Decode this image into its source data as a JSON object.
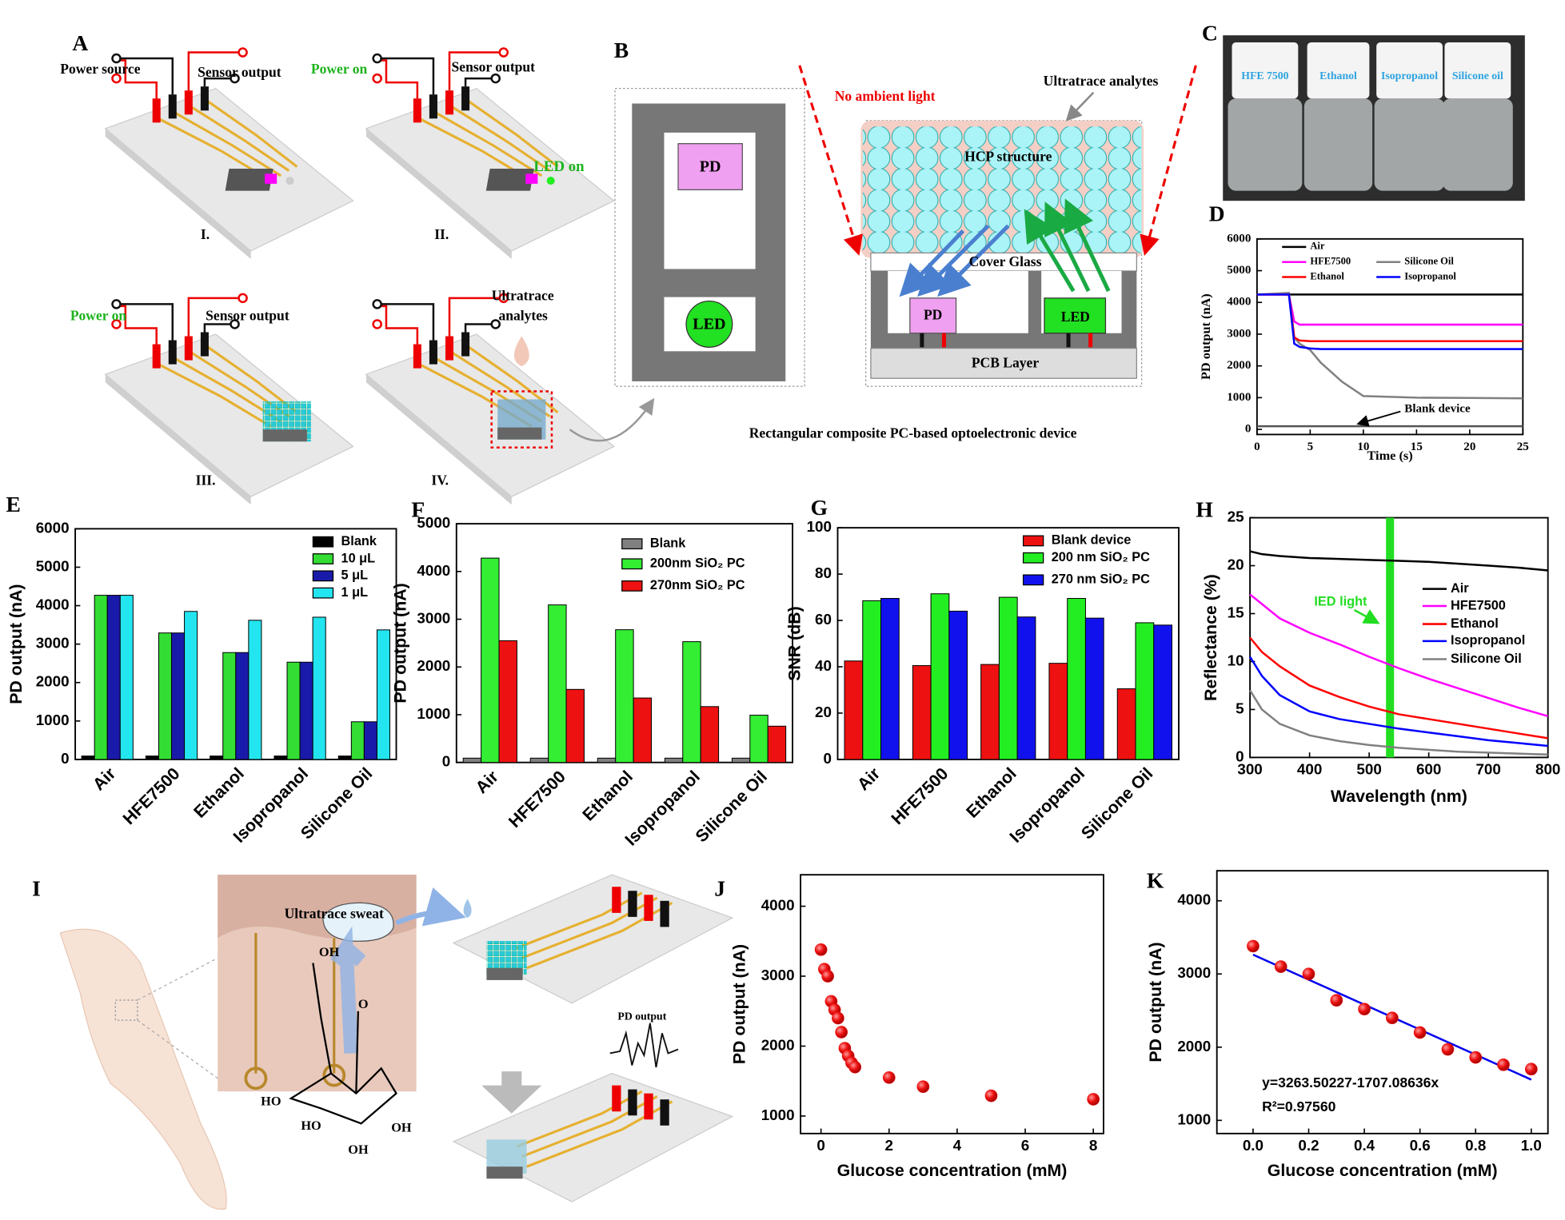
{
  "diagrams": {
    "A": {
      "letter": "A",
      "labels": [
        "Power source",
        "Sensor output",
        "I.",
        "Power on",
        "Sensor output",
        "LED on",
        "II.",
        "Power on",
        "Sensor output",
        "III.",
        "Ultratrace",
        "analytes",
        "IV."
      ]
    },
    "B": {
      "letter": "B",
      "labels": [
        "PD",
        "LED",
        "No ambient light",
        "Ultratrace analytes",
        "HCP structure",
        "Cover Glass",
        "PD",
        "LED",
        "PCB Layer",
        "Rectangular composite PC-based optoelectronic device"
      ]
    },
    "C": {
      "letter": "C",
      "labels": [
        "HFE 7500",
        "Ethanol",
        "Isopropanol",
        "Silicone oil"
      ]
    },
    "I": {
      "letter": "I",
      "labels": [
        "Ultratrace sweat",
        "PD output",
        "OH",
        "O",
        "HO",
        "HO",
        "OH",
        "OH"
      ]
    }
  },
  "chart_data": [
    {
      "panel": "D",
      "type": "line",
      "xlabel": "Time (s)",
      "ylabel": "PD output (nA)",
      "x": [
        0,
        3,
        3.5,
        4,
        5,
        6,
        8,
        10,
        15,
        20,
        25
      ],
      "xlim": [
        0,
        25
      ],
      "xticks": [
        0,
        5,
        10,
        15,
        20,
        25
      ],
      "ylim": [
        -160,
        6000
      ],
      "yticks": [
        0,
        1000,
        2000,
        3000,
        4000,
        5000,
        6000
      ],
      "series": [
        {
          "name": "Air",
          "color": "#000000",
          "values": [
            4250,
            4250,
            4250,
            4250,
            4250,
            4250,
            4250,
            4250,
            4250,
            4250,
            4250
          ]
        },
        {
          "name": "HFE7500",
          "color": "#ff00ff",
          "values": [
            4250,
            4250,
            3400,
            3300,
            3300,
            3300,
            3300,
            3300,
            3300,
            3300,
            3300
          ]
        },
        {
          "name": "Silicone Oil",
          "color": "#808080",
          "values": [
            4250,
            4300,
            2900,
            2700,
            2500,
            2100,
            1500,
            1050,
            1000,
            990,
            980
          ]
        },
        {
          "name": "Ethanol",
          "color": "#ff0000",
          "values": [
            4250,
            4250,
            2900,
            2800,
            2780,
            2780,
            2780,
            2780,
            2780,
            2780,
            2780
          ]
        },
        {
          "name": "Isopropanol",
          "color": "#0000ff",
          "values": [
            4250,
            4250,
            2700,
            2600,
            2550,
            2530,
            2530,
            2530,
            2530,
            2530,
            2530
          ]
        },
        {
          "name": "Blank device",
          "color": "#555555",
          "values": [
            100,
            100,
            100,
            100,
            100,
            100,
            100,
            100,
            100,
            100,
            100
          ]
        }
      ]
    },
    {
      "panel": "E",
      "type": "bar",
      "ylabel": "PD output (nA)",
      "categories": [
        "Air",
        "HFE7500",
        "Ethanol",
        "Isopropanol",
        "Silicone Oil"
      ],
      "ylim": [
        0,
        6000
      ],
      "yticks": [
        0,
        1000,
        2000,
        3000,
        4000,
        5000,
        6000
      ],
      "series": [
        {
          "name": "Blank",
          "color": "#000000",
          "values": [
            90,
            90,
            90,
            90,
            90
          ]
        },
        {
          "name": "10 μL",
          "color": "#33dd33",
          "values": [
            4270,
            3290,
            2780,
            2530,
            980
          ]
        },
        {
          "name": "5 μL",
          "color": "#1a1aaa",
          "values": [
            4270,
            3290,
            2780,
            2530,
            980
          ]
        },
        {
          "name": "1 μL",
          "color": "#22e5f0",
          "values": [
            4270,
            3850,
            3620,
            3700,
            3370
          ]
        }
      ]
    },
    {
      "panel": "F",
      "type": "bar",
      "ylabel": "PD output (nA)",
      "categories": [
        "Air",
        "HFE7500",
        "Ethanol",
        "Isopropanol",
        "Silicone Oil"
      ],
      "ylim": [
        0,
        5000
      ],
      "yticks": [
        0,
        1000,
        2000,
        3000,
        4000,
        5000
      ],
      "series": [
        {
          "name": "Blank",
          "color": "#808080",
          "values": [
            90,
            90,
            90,
            90,
            90
          ]
        },
        {
          "name": "200nm SiO₂ PC",
          "color": "#33ee33",
          "values": [
            4280,
            3300,
            2780,
            2530,
            990
          ]
        },
        {
          "name": "270nm SiO₂ PC",
          "color": "#ee1111",
          "values": [
            2550,
            1530,
            1350,
            1170,
            760
          ]
        }
      ]
    },
    {
      "panel": "G",
      "type": "bar",
      "ylabel": "SNR (dB)",
      "categories": [
        "Air",
        "HFE7500",
        "Ethanol",
        "Isopropanol",
        "Silicone Oil"
      ],
      "ylim": [
        0,
        100
      ],
      "yticks": [
        0,
        20,
        40,
        60,
        80,
        100
      ],
      "series": [
        {
          "name": "Blank device",
          "color": "#ee1111",
          "values": [
            42.5,
            40.5,
            41,
            41.5,
            30.5
          ]
        },
        {
          "name": "200 nm SiO₂ PC",
          "color": "#22ee22",
          "values": [
            68.5,
            71.5,
            70,
            69.5,
            59
          ]
        },
        {
          "name": "270 nm SiO₂ PC",
          "color": "#1111ee",
          "values": [
            69.5,
            64,
            61.5,
            61,
            58
          ]
        }
      ]
    },
    {
      "panel": "H",
      "type": "line",
      "xlabel": "Wavelength (nm)",
      "ylabel": "Reflectance (%)",
      "x": [
        300,
        320,
        350,
        400,
        450,
        500,
        550,
        600,
        650,
        700,
        750,
        800
      ],
      "xlim": [
        300,
        800
      ],
      "xticks": [
        300,
        400,
        500,
        600,
        700,
        800
      ],
      "ylim": [
        0,
        25
      ],
      "yticks": [
        0,
        5,
        10,
        15,
        20,
        25
      ],
      "band": {
        "x": 535,
        "color": "#22dd22",
        "label": "IED light"
      },
      "series": [
        {
          "name": "Air",
          "color": "#000000",
          "values": [
            21.5,
            21.2,
            21,
            20.8,
            20.7,
            20.6,
            20.5,
            20.4,
            20.2,
            20,
            19.8,
            19.5
          ]
        },
        {
          "name": "HFE7500",
          "color": "#ff00ff",
          "values": [
            17,
            16,
            14.5,
            13,
            11.8,
            10.5,
            9.3,
            8.2,
            7.2,
            6.2,
            5.2,
            4.3
          ]
        },
        {
          "name": "Ethanol",
          "color": "#ff0000",
          "values": [
            12.5,
            11,
            9.5,
            7.5,
            6.3,
            5.3,
            4.5,
            4,
            3.5,
            3,
            2.5,
            2
          ]
        },
        {
          "name": "Isopropanol",
          "color": "#0000ff",
          "values": [
            10.5,
            8.5,
            6.5,
            4.8,
            4,
            3.5,
            3,
            2.6,
            2.2,
            1.8,
            1.5,
            1.2
          ]
        },
        {
          "name": "Silicone Oil",
          "color": "#808080",
          "values": [
            7,
            5,
            3.5,
            2.3,
            1.7,
            1.3,
            1,
            0.8,
            0.6,
            0.5,
            0.4,
            0.3
          ]
        }
      ]
    },
    {
      "panel": "J",
      "type": "scatter",
      "xlabel": "Glucose concentration (mM)",
      "ylabel": "PD output (nA)",
      "x": [
        0,
        0.1,
        0.2,
        0.3,
        0.4,
        0.5,
        0.6,
        0.7,
        0.8,
        0.9,
        1,
        2,
        3,
        5,
        8
      ],
      "values": [
        3380,
        3100,
        3000,
        2640,
        2520,
        2400,
        2200,
        1970,
        1860,
        1760,
        1700,
        1550,
        1420,
        1290,
        1240
      ],
      "xlim": [
        -0.6,
        8.3
      ],
      "xticks": [
        0,
        2,
        4,
        6,
        8
      ],
      "ylim": [
        750,
        4450
      ],
      "yticks": [
        1000,
        2000,
        3000,
        4000
      ],
      "color": "#ee1111"
    },
    {
      "panel": "K",
      "type": "scatter",
      "xlabel": "Glucose concentration (mM)",
      "ylabel": "PD output (nA)",
      "x": [
        0,
        0.1,
        0.2,
        0.3,
        0.4,
        0.5,
        0.6,
        0.7,
        0.8,
        0.9,
        1
      ],
      "values": [
        3380,
        3100,
        3000,
        2640,
        2520,
        2400,
        2200,
        1970,
        1860,
        1760,
        1700
      ],
      "xlim": [
        -0.13,
        1.06
      ],
      "xticks": [
        {
          "value": 0,
          "label": "0.0"
        },
        {
          "value": 0.2,
          "label": "0.2"
        },
        {
          "value": 0.4,
          "label": "0.4"
        },
        {
          "value": 0.6,
          "label": "0.6"
        },
        {
          "value": 0.8,
          "label": "0.8"
        },
        {
          "value": 1,
          "label": "1.0"
        }
      ],
      "ylim": [
        820,
        4410
      ],
      "yticks": [
        1000,
        2000,
        3000,
        4000
      ],
      "color": "#ee1111",
      "fit": {
        "intercept": 3263.50227,
        "slope": -1707.08636,
        "color": "#0000ee",
        "label": "y=3263.50227-1707.08636x",
        "r2_label": "R²=0.97560"
      }
    }
  ]
}
